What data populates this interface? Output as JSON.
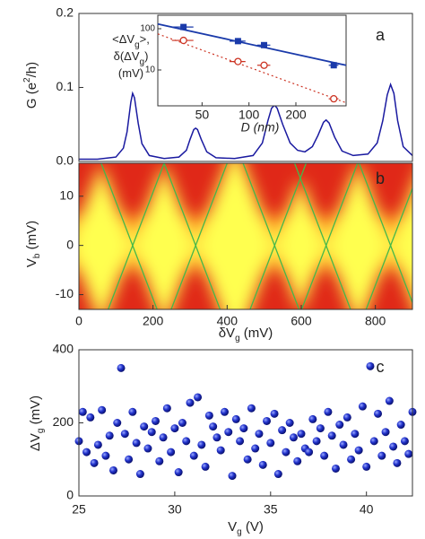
{
  "chart_data": [
    {
      "type": "line",
      "panel_label": "a",
      "color": "#1a1aa0",
      "ylabel": {
        "text": "G (e",
        "sup": "2",
        "tail": "/h)"
      },
      "xlim": [
        0,
        900
      ],
      "ylim": [
        0,
        0.2
      ],
      "yticks": [
        {
          "value": 0,
          "label": "0.0"
        },
        {
          "value": 0.1,
          "label": "0.1"
        },
        {
          "value": 0.2,
          "label": "0.2"
        }
      ],
      "x": [
        0,
        50,
        100,
        120,
        130,
        140,
        145,
        150,
        160,
        170,
        190,
        230,
        270,
        290,
        300,
        310,
        315,
        320,
        330,
        345,
        370,
        420,
        470,
        495,
        510,
        520,
        528,
        535,
        550,
        570,
        590,
        610,
        630,
        645,
        660,
        667,
        675,
        690,
        710,
        740,
        780,
        805,
        820,
        832,
        841,
        850,
        860,
        875,
        900
      ],
      "values": [
        0.003,
        0.003,
        0.006,
        0.018,
        0.04,
        0.08,
        0.092,
        0.086,
        0.052,
        0.024,
        0.008,
        0.004,
        0.006,
        0.015,
        0.03,
        0.043,
        0.045,
        0.043,
        0.03,
        0.013,
        0.005,
        0.004,
        0.008,
        0.025,
        0.055,
        0.072,
        0.076,
        0.072,
        0.05,
        0.025,
        0.015,
        0.013,
        0.02,
        0.035,
        0.053,
        0.056,
        0.052,
        0.033,
        0.014,
        0.008,
        0.01,
        0.025,
        0.055,
        0.09,
        0.104,
        0.092,
        0.055,
        0.02,
        0.008
      ]
    },
    {
      "type": "scatter",
      "log_x": true,
      "log_y": true,
      "xlabel": "D (nm)",
      "ylabel": [
        {
          "text": "<ΔV",
          "sub": "g",
          "tail": ">,"
        },
        {
          "text": "δ(ΔV",
          "sub": "g",
          "tail": ")"
        },
        {
          "text": "(mV)"
        }
      ],
      "xlim": [
        26,
        420
      ],
      "ylim": [
        1.35,
        212
      ],
      "xticks": [
        50,
        100,
        200
      ],
      "yticks": [
        10,
        100
      ],
      "series": [
        {
          "color": "#1a3aaa",
          "marker": "square",
          "x": [
            38,
            85,
            125,
            350
          ],
          "values": [
            110,
            50,
            40,
            13
          ],
          "xerr": [
            6,
            10,
            12,
            25
          ]
        },
        {
          "color": "#cc3322",
          "marker": "circle",
          "x": [
            38,
            85,
            125,
            350
          ],
          "values": [
            52,
            16,
            13,
            2
          ],
          "xerr": [
            6,
            10,
            12,
            25
          ]
        }
      ],
      "fits": [
        {
          "color": "#1a3aaa",
          "dash": "none",
          "x": [
            26,
            420
          ],
          "values": [
            130,
            13
          ]
        },
        {
          "color": "#cc3322",
          "dash": "2,3",
          "x": [
            26,
            420
          ],
          "values": [
            75,
            1.6
          ]
        }
      ]
    },
    {
      "type": "diamond",
      "panel_label": "b",
      "xlabel": {
        "text": "δV",
        "sub": "g",
        "tail": " (mV)"
      },
      "ylabel": {
        "text": "V",
        "sub": "b",
        "tail": " (mV)"
      },
      "xlim": [
        0,
        900
      ],
      "ylim": [
        -13,
        16.7
      ],
      "xticks": [
        0,
        200,
        400,
        600,
        800
      ],
      "yticks": [
        -10,
        0,
        10
      ],
      "crossings": [
        145,
        315,
        528,
        667,
        841
      ],
      "edges": [
        [
          60,
          211
        ],
        [
          230,
          79
        ],
        [
          230,
          381
        ],
        [
          400,
          249
        ],
        [
          443,
          594
        ],
        [
          613,
          462
        ],
        [
          582,
          733
        ],
        [
          752,
          601
        ],
        [
          756,
          907
        ],
        [
          926,
          775
        ]
      ],
      "edge_color": "#44b84a",
      "colors": [
        "#e02818",
        "#ff8a10",
        "#ffff50"
      ]
    },
    {
      "type": "scatter",
      "panel_label": "c",
      "color": "#1f2fd0",
      "xlabel": {
        "text": "V",
        "sub": "g",
        "tail": " (V)"
      },
      "ylabel": {
        "text": "ΔV",
        "sub": "g",
        "tail": " (mV)"
      },
      "xlim": [
        25,
        42.4
      ],
      "ylim": [
        0,
        400
      ],
      "xticks": [
        25,
        30,
        35,
        40
      ],
      "yticks": [
        0,
        200,
        400
      ],
      "x": [
        25,
        25.2,
        25.4,
        25.6,
        25.8,
        26,
        26.2,
        26.4,
        26.6,
        26.8,
        27,
        27.2,
        27.4,
        27.6,
        27.8,
        28,
        28.2,
        28.4,
        28.6,
        28.8,
        29,
        29.2,
        29.4,
        29.6,
        29.8,
        30,
        30.2,
        30.4,
        30.6,
        30.8,
        31,
        31.2,
        31.4,
        31.6,
        31.8,
        32,
        32.2,
        32.4,
        32.6,
        32.8,
        33,
        33.2,
        33.4,
        33.6,
        33.8,
        34,
        34.2,
        34.4,
        34.6,
        34.8,
        35,
        35.2,
        35.4,
        35.6,
        35.8,
        36,
        36.2,
        36.4,
        36.6,
        36.8,
        37,
        37.2,
        37.4,
        37.6,
        37.8,
        38,
        38.2,
        38.4,
        38.6,
        38.8,
        39,
        39.2,
        39.4,
        39.6,
        39.8,
        40,
        40.2,
        40.4,
        40.6,
        40.8,
        41,
        41.2,
        41.4,
        41.6,
        41.8,
        42,
        42.2,
        42.4
      ],
      "values": [
        150,
        230,
        120,
        215,
        90,
        140,
        235,
        110,
        165,
        70,
        200,
        350,
        170,
        100,
        230,
        145,
        60,
        190,
        130,
        175,
        205,
        95,
        160,
        240,
        120,
        185,
        65,
        200,
        150,
        255,
        110,
        270,
        140,
        80,
        220,
        190,
        160,
        125,
        230,
        175,
        55,
        210,
        150,
        185,
        100,
        240,
        130,
        170,
        85,
        205,
        145,
        225,
        60,
        180,
        120,
        200,
        160,
        95,
        170,
        130,
        120,
        210,
        150,
        185,
        110,
        230,
        165,
        75,
        195,
        140,
        215,
        100,
        170,
        125,
        245,
        80,
        355,
        150,
        225,
        110,
        175,
        260,
        135,
        90,
        195,
        150,
        115,
        230
      ]
    }
  ]
}
